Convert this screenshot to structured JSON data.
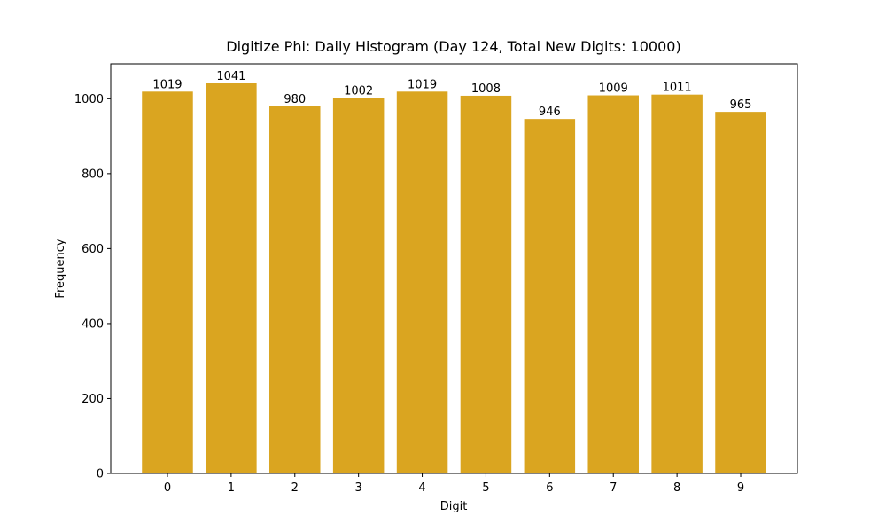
{
  "chart_data": {
    "type": "bar",
    "title": "Digitize Phi: Daily Histogram (Day 124, Total New Digits: 10000)",
    "x_label": "Digit",
    "y_label": "Frequency",
    "x": [
      0,
      1,
      2,
      3,
      4,
      5,
      6,
      7,
      8,
      9
    ],
    "values": [
      1019,
      1041,
      980,
      1002,
      1019,
      1008,
      946,
      1009,
      1011,
      965
    ],
    "color": "#daa520",
    "xlim": [
      -0.89,
      9.89
    ],
    "xticks": [
      0,
      1,
      2,
      3,
      4,
      5,
      6,
      7,
      8,
      9
    ],
    "ylim": [
      0,
      1093.05
    ],
    "yticks": [
      0,
      200,
      400,
      600,
      800,
      1000
    ],
    "grid": false
  }
}
